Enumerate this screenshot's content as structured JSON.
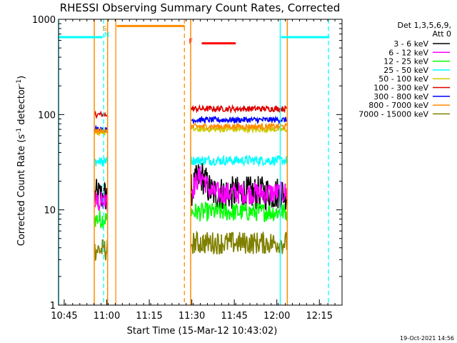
{
  "chart_data": {
    "type": "line",
    "title": "RHESSI Observing Summary Count Rates, Corrected",
    "xlabel": "Start Time (15-Mar-12 10:43:02)",
    "ylabel_main": "Corrected Count Rate (s",
    "ylabel_exp1": "-1",
    "ylabel_mid": " detector",
    "ylabel_exp2": "-1",
    "ylabel_end": ")",
    "x_unit": "minutes after 10:43:02",
    "xlim": [
      0,
      100
    ],
    "ylim": [
      1,
      1000
    ],
    "y_scale": "log",
    "x_tick_labels": [
      {
        "label": "10:45",
        "t": 2
      },
      {
        "label": "11:00",
        "t": 17
      },
      {
        "label": "11:15",
        "t": 32
      },
      {
        "label": "11:30",
        "t": 47
      },
      {
        "label": "11:45",
        "t": 62
      },
      {
        "label": "12:00",
        "t": 77
      },
      {
        "label": "12:15",
        "t": 92
      }
    ],
    "y_tick_labels": [
      {
        "label": "1",
        "v": 1
      },
      {
        "label": "10",
        "v": 10
      },
      {
        "label": "100",
        "v": 100
      },
      {
        "label": "1000",
        "v": 1000
      }
    ],
    "legend_header": [
      "Det 1,3,5,6,9,",
      "Att 0"
    ],
    "series": [
      {
        "name": "3 - 6 keV",
        "color": "#000000"
      },
      {
        "name": "6 - 12 keV",
        "color": "#ff00ff"
      },
      {
        "name": "12 - 25 keV",
        "color": "#00ff00"
      },
      {
        "name": "25 - 50 keV",
        "color": "#00ffff"
      },
      {
        "name": "50 - 100 keV",
        "color": "#cccc00"
      },
      {
        "name": "100 - 300 keV",
        "color": "#dd0000"
      },
      {
        "name": "300 - 800 keV",
        "color": "#0000ff"
      },
      {
        "name": "800 - 7000 keV",
        "color": "#ff8c00"
      },
      {
        "name": "7000 - 15000 keV",
        "color": "#808000"
      }
    ],
    "segments": [
      {
        "t_start": 12.8,
        "t_end": 17.2,
        "levels": {
          "100 - 300 keV": 100,
          "300 - 800 keV": 70,
          "800 - 7000 keV": 67,
          "50 - 100 keV": 65,
          "25 - 50 keV": 32,
          "3 - 6 keV": 14,
          "6 - 12 keV": 12,
          "12 - 25 keV": 8,
          "7000 - 15000 keV": 3.8
        }
      },
      {
        "t_start": 46.8,
        "t_end": 80.5,
        "levels": {
          "100 - 300 keV": 115,
          "300 - 800 keV": 88,
          "800 - 7000 keV": 75,
          "50 - 100 keV": 70,
          "25 - 50 keV": 33,
          "3 - 6 keV": 15,
          "6 - 12 keV": 15,
          "12 - 25 keV": 9.5,
          "7000 - 15000 keV": 4.5
        }
      }
    ],
    "annotations": {
      "saa_bars": [
        {
          "t_start": 0,
          "t_end": 15.5,
          "level": 650,
          "color": "#00ffff"
        },
        {
          "t_start": 78.5,
          "t_end": 95.5,
          "level": 650,
          "color": "#00ffff"
        }
      ],
      "night_bar": {
        "t_start": 20.5,
        "t_end": 44.5,
        "level": 850,
        "color": "#ff8c00"
      },
      "flare_bar": {
        "t_start": 50.5,
        "t_end": 62.5,
        "level": 560,
        "color": "#ff0000"
      },
      "markers": [
        {
          "label": "S",
          "t": 16.2,
          "color": "#ff8c00"
        },
        {
          "label": "N",
          "t": 16.8,
          "color": "#00ffff"
        },
        {
          "label": "F",
          "t": 46.7,
          "color": "#ff0000"
        }
      ],
      "vlines": [
        {
          "t": 15.9,
          "color": "#00ffff",
          "style": "dashed"
        },
        {
          "t": 20.2,
          "color": "#ff8c00",
          "style": "solid"
        },
        {
          "t": 44.4,
          "color": "#ff8c00",
          "style": "dashed"
        },
        {
          "t": 78.2,
          "color": "#00ffff",
          "style": "solid"
        },
        {
          "t": 95.2,
          "color": "#00ffff",
          "style": "dashed"
        }
      ],
      "edge_vlines": [
        {
          "t": 0,
          "color": "#00ffff"
        },
        {
          "t": 12.6,
          "color": "#ff8c00"
        },
        {
          "t": 17.3,
          "color": "#ff8c00"
        },
        {
          "t": 46.6,
          "color": "#ff8c00"
        },
        {
          "t": 80.7,
          "color": "#ff8c00"
        }
      ]
    },
    "date_stamp": "19-Oct-2021 14:56"
  }
}
